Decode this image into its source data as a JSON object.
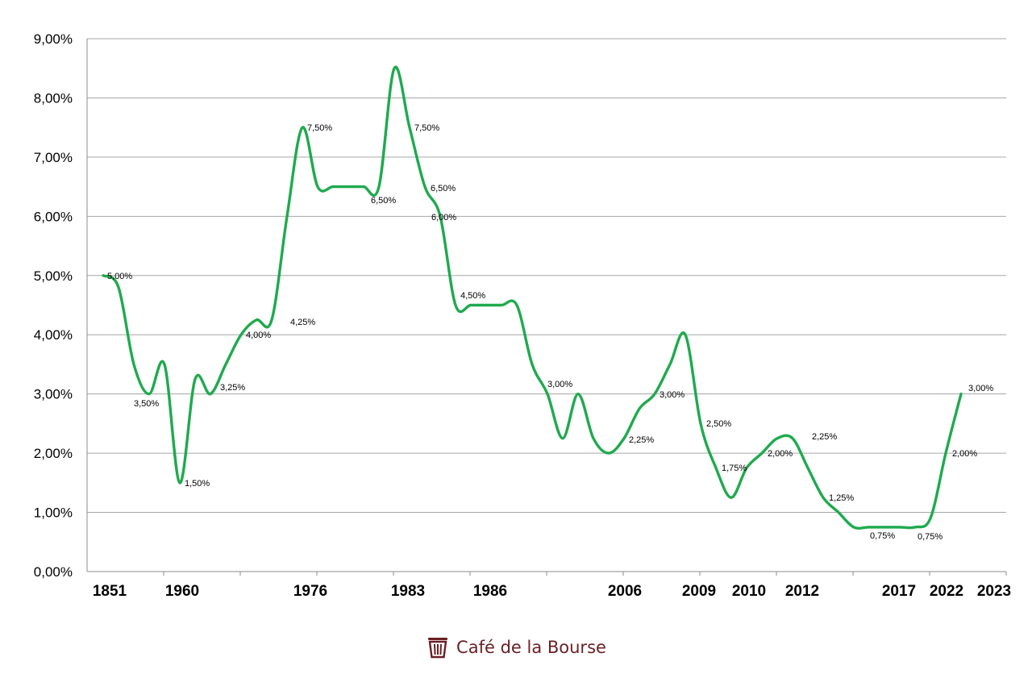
{
  "chart_data": {
    "type": "line",
    "title": "",
    "xlabel": "",
    "ylabel": "",
    "ylim": [
      0,
      9
    ],
    "y_ticks": [
      "0,00%",
      "1,00%",
      "2,00%",
      "3,00%",
      "4,00%",
      "5,00%",
      "6,00%",
      "7,00%",
      "8,00%",
      "9,00%"
    ],
    "grid": true,
    "line_color": "#1faa4e",
    "series": [
      {
        "values": [
          5.0,
          4.8,
          3.5,
          3.0,
          3.5,
          1.5,
          3.25,
          3.0,
          3.5,
          4.0,
          4.25,
          4.25,
          6.0,
          7.5,
          6.5,
          6.5,
          6.5,
          6.5,
          6.5,
          8.5,
          7.5,
          6.5,
          6.0,
          4.5,
          4.5,
          4.5,
          4.5,
          4.5,
          3.5,
          3.0,
          2.25,
          3.0,
          2.25,
          2.0,
          2.25,
          2.75,
          3.0,
          3.5,
          4.0,
          2.5,
          1.75,
          1.25,
          1.75,
          2.0,
          2.25,
          2.25,
          1.75,
          1.25,
          1.0,
          0.75,
          0.75,
          0.75,
          0.75,
          0.75,
          0.9,
          2.0,
          3.0
        ]
      }
    ],
    "x_labels": [
      "1851",
      "1960",
      "1976",
      "1983",
      "1986",
      "2006",
      "2009",
      "2010",
      "2012",
      "2017",
      "2022",
      "2023"
    ],
    "data_labels": [
      "5,00%",
      "3,50%",
      "1,50%",
      "3,25%",
      "4,00%",
      "4,25%",
      "7,50%",
      "6,50%",
      "7,50%",
      "6,50%",
      "6,00%",
      "4,50%",
      "3,00%",
      "2,25%",
      "3,00%",
      "2,50%",
      "1,75%",
      "2,00%",
      "2,25%",
      "1,25%",
      "0,75%",
      "0,75%",
      "2,00%",
      "3,00%"
    ]
  },
  "brand": {
    "name": "Café de la Bourse",
    "logo_icon": "bin-logo-icon"
  }
}
